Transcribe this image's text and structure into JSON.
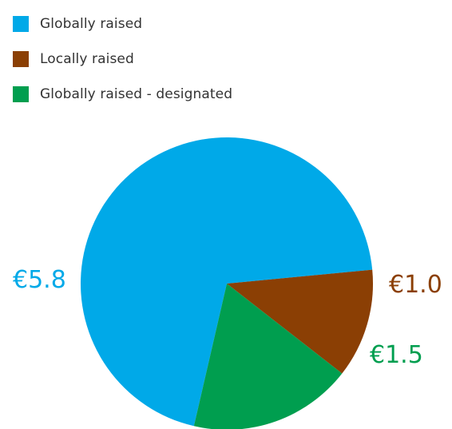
{
  "chart_data": {
    "type": "pie",
    "title": "",
    "series": [
      {
        "name": "Globally raised",
        "value": 5.8,
        "label": "€5.8",
        "color": "#00A9E8"
      },
      {
        "name": "Locally raised",
        "value": 1.0,
        "label": "€1.0",
        "color": "#8B3F04"
      },
      {
        "name": "Globally raised - designated",
        "value": 1.5,
        "label": "€1.5",
        "color": "#009E4F"
      }
    ],
    "legend_position": "top-left"
  }
}
